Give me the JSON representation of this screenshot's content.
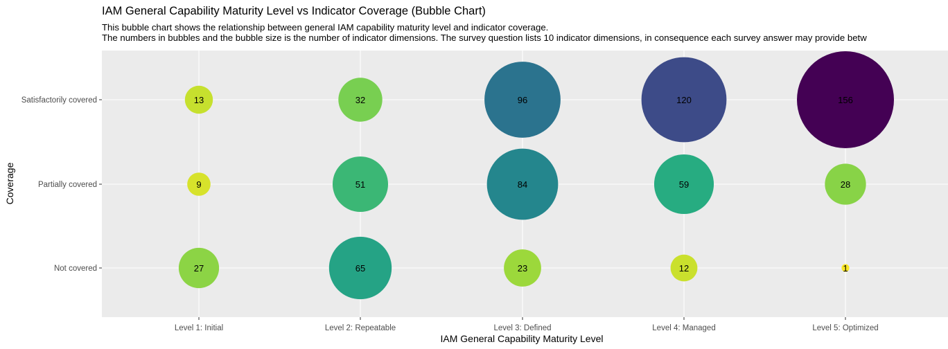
{
  "chart_data": {
    "type": "scatter",
    "title": "IAM General Capability Maturity Level vs Indicator Coverage (Bubble Chart)",
    "subtitle_lines": [
      "This bubble chart shows the relationship between general IAM capability maturity level and indicator coverage.",
      "The numbers in bubbles and the bubble size is the number of indicator dimensions. The survey question lists 10 indicator dimensions, in consequence each survey answer may provide betw"
    ],
    "xlabel": "IAM General Capability Maturity Level",
    "ylabel": "Coverage",
    "x_categories": [
      "Level 1: Initial",
      "Level 2: Repeatable",
      "Level 3: Defined",
      "Level 4: Managed",
      "Level 5: Optimized"
    ],
    "y_categories": [
      "Not covered",
      "Partially covered",
      "Satisfactorily covered"
    ],
    "points": [
      {
        "x": "Level 1: Initial",
        "y": "Satisfactorily covered",
        "value": 13
      },
      {
        "x": "Level 2: Repeatable",
        "y": "Satisfactorily covered",
        "value": 32
      },
      {
        "x": "Level 3: Defined",
        "y": "Satisfactorily covered",
        "value": 96
      },
      {
        "x": "Level 4: Managed",
        "y": "Satisfactorily covered",
        "value": 120
      },
      {
        "x": "Level 5: Optimized",
        "y": "Satisfactorily covered",
        "value": 156
      },
      {
        "x": "Level 1: Initial",
        "y": "Partially covered",
        "value": 9
      },
      {
        "x": "Level 2: Repeatable",
        "y": "Partially covered",
        "value": 51
      },
      {
        "x": "Level 3: Defined",
        "y": "Partially covered",
        "value": 84
      },
      {
        "x": "Level 4: Managed",
        "y": "Partially covered",
        "value": 59
      },
      {
        "x": "Level 5: Optimized",
        "y": "Partially covered",
        "value": 28
      },
      {
        "x": "Level 1: Initial",
        "y": "Not covered",
        "value": 27
      },
      {
        "x": "Level 2: Repeatable",
        "y": "Not covered",
        "value": 65
      },
      {
        "x": "Level 3: Defined",
        "y": "Not covered",
        "value": 23
      },
      {
        "x": "Level 4: Managed",
        "y": "Not covered",
        "value": 12
      },
      {
        "x": "Level 5: Optimized",
        "y": "Not covered",
        "value": 1
      }
    ],
    "size_encodes": "value",
    "color_scale": "viridis (reversed: small = yellow, large = purple)",
    "grid": true,
    "legend": "none"
  }
}
